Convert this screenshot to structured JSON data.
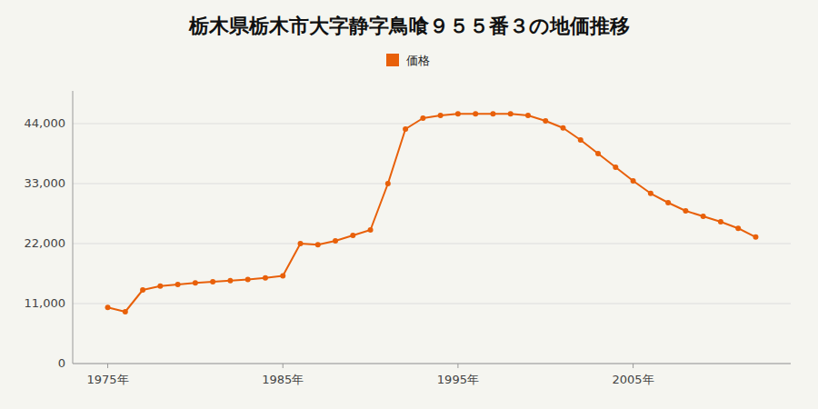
{
  "chart_data": {
    "type": "line",
    "title": "栃木県栃木市大字静字鳥喰９５５番３の地価推移",
    "x": [
      1975,
      1976,
      1977,
      1978,
      1979,
      1980,
      1981,
      1982,
      1983,
      1984,
      1985,
      1986,
      1987,
      1988,
      1989,
      1990,
      1991,
      1992,
      1993,
      1994,
      1995,
      1996,
      1997,
      1998,
      1999,
      2000,
      2001,
      2002,
      2003,
      2004,
      2005,
      2006,
      2007,
      2008,
      2009,
      2010,
      2011,
      2012
    ],
    "series": [
      {
        "name": "価格",
        "color": "#e8600a",
        "marker": "circle",
        "values": [
          10300,
          9500,
          13500,
          14200,
          14500,
          14800,
          15000,
          15200,
          15400,
          15700,
          16100,
          22000,
          21800,
          22500,
          23500,
          24500,
          33000,
          43000,
          45000,
          45500,
          45800,
          45800,
          45800,
          45800,
          45500,
          44500,
          43200,
          41000,
          38500,
          36000,
          33500,
          31200,
          29500,
          28000,
          27000,
          26000,
          24800,
          23200
        ]
      }
    ],
    "xlim": [
      1973,
      2014
    ],
    "xticks": [
      {
        "value": 1975,
        "label": "1975年"
      },
      {
        "value": 1985,
        "label": "1985年"
      },
      {
        "value": 1995,
        "label": "1995年"
      },
      {
        "value": 2005,
        "label": "2005年"
      }
    ],
    "ylim": [
      0,
      50000
    ],
    "yticks": [
      0,
      {
        "value": 11000,
        "label": "11,000"
      },
      {
        "value": 22000,
        "label": "22,000"
      },
      {
        "value": 33000,
        "label": "33,000"
      },
      {
        "value": 44000,
        "label": "44,000"
      }
    ],
    "grid": true,
    "legend": "top"
  }
}
